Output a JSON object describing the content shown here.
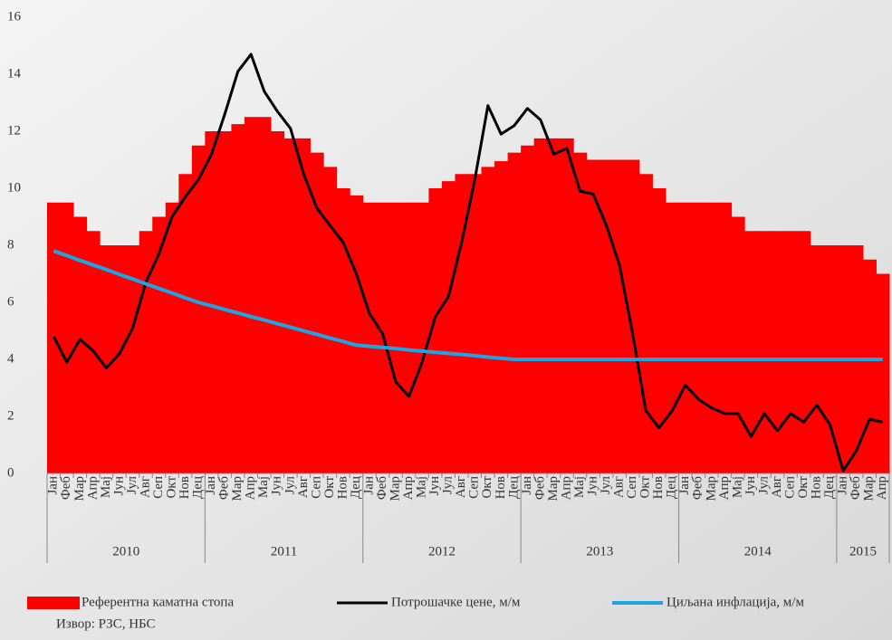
{
  "chart_data": {
    "type": "combo",
    "categories": [
      "Јан",
      "Феб",
      "Мар",
      "Апр",
      "Мај",
      "Јун",
      "Јул",
      "Авг",
      "Сеп",
      "Окт",
      "Нов",
      "Дец",
      "Јан",
      "Феб",
      "Мар",
      "Апр",
      "Мај",
      "Јун",
      "Јул",
      "Авг",
      "Сеп",
      "Окт",
      "Нов",
      "Дец",
      "Јан",
      "Феб",
      "Мар",
      "Апр",
      "Мај",
      "Јун",
      "Јул",
      "Авг",
      "Сеп",
      "Окт",
      "Нов",
      "Дец",
      "Јан",
      "Феб",
      "Мар",
      "Апр",
      "Мај",
      "Јун",
      "Јул",
      "Авг",
      "Сеп",
      "Окт",
      "Нов",
      "Дец",
      "Јан",
      "Феб",
      "Мар",
      "Апр",
      "Мај",
      "Јун",
      "Јул",
      "Авг",
      "Сеп",
      "Окт",
      "Нов",
      "Дец",
      "Јан",
      "Феб",
      "Мар",
      "Апр"
    ],
    "years": [
      "2010",
      "2011",
      "2012",
      "2013",
      "2014",
      "2015"
    ],
    "series": [
      {
        "name": "Референтна каматна стопа",
        "type": "step-area",
        "color": "#ff0000",
        "values": [
          9.5,
          9.5,
          9.0,
          8.5,
          8.0,
          8.0,
          8.0,
          8.5,
          9.0,
          9.5,
          10.5,
          11.5,
          12.0,
          12.0,
          12.25,
          12.5,
          12.5,
          12.0,
          11.75,
          11.75,
          11.25,
          10.75,
          10.0,
          9.75,
          9.5,
          9.5,
          9.5,
          9.5,
          9.5,
          10.0,
          10.25,
          10.5,
          10.5,
          10.75,
          10.95,
          11.25,
          11.5,
          11.75,
          11.75,
          11.75,
          11.25,
          11.0,
          11.0,
          11.0,
          11.0,
          10.5,
          10.0,
          9.5,
          9.5,
          9.5,
          9.5,
          9.5,
          9.0,
          8.5,
          8.5,
          8.5,
          8.5,
          8.5,
          8.0,
          8.0,
          8.0,
          8.0,
          7.5,
          7.0
        ]
      },
      {
        "name": "Потрошачке цене, м/м",
        "type": "line",
        "color": "#000000",
        "width": 3,
        "values": [
          4.8,
          3.9,
          4.7,
          4.3,
          3.7,
          4.2,
          5.1,
          6.7,
          7.7,
          9.0,
          9.7,
          10.3,
          11.2,
          12.6,
          14.1,
          14.7,
          13.4,
          12.7,
          12.1,
          10.5,
          9.3,
          8.7,
          8.1,
          7.0,
          5.6,
          4.9,
          3.2,
          2.7,
          3.9,
          5.5,
          6.2,
          8.1,
          10.3,
          12.9,
          11.9,
          12.2,
          12.8,
          12.4,
          11.2,
          11.4,
          9.9,
          9.8,
          8.7,
          7.3,
          4.9,
          2.2,
          1.6,
          2.2,
          3.1,
          2.6,
          2.3,
          2.1,
          2.1,
          1.3,
          2.1,
          1.5,
          2.1,
          1.8,
          2.4,
          1.7,
          0.1,
          0.8,
          1.9,
          1.8
        ]
      },
      {
        "name": "Циљана инфлација, м/м",
        "type": "line",
        "color": "#1aa6e4",
        "width": 4,
        "values": [
          7.8,
          7.64,
          7.47,
          7.31,
          7.15,
          6.98,
          6.82,
          6.65,
          6.49,
          6.33,
          6.16,
          6.0,
          5.88,
          5.75,
          5.63,
          5.5,
          5.38,
          5.25,
          5.13,
          5.0,
          4.88,
          4.75,
          4.63,
          4.5,
          4.46,
          4.42,
          4.38,
          4.33,
          4.29,
          4.25,
          4.21,
          4.17,
          4.13,
          4.08,
          4.04,
          4.0,
          4.0,
          4.0,
          4.0,
          4.0,
          4.0,
          4.0,
          4.0,
          4.0,
          4.0,
          4.0,
          4.0,
          4.0,
          4.0,
          4.0,
          4.0,
          4.0,
          4.0,
          4.0,
          4.0,
          4.0,
          4.0,
          4.0,
          4.0,
          4.0,
          4.0,
          4.0,
          4.0,
          4.0
        ]
      }
    ],
    "ylim": [
      0,
      16
    ],
    "yticks": [
      0,
      2,
      4,
      6,
      8,
      10,
      12,
      14,
      16
    ],
    "source": "Извор: РЗС, НБС"
  }
}
